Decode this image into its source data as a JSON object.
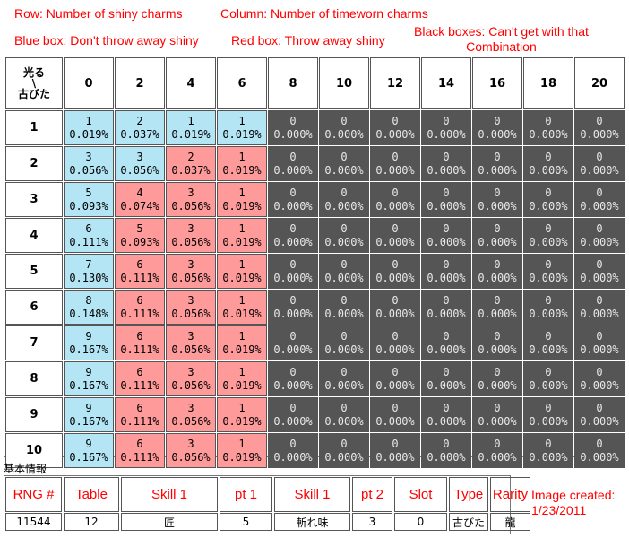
{
  "annotations": {
    "row": "Row: Number of shiny charms",
    "column": "Column: Number of timeworn charms",
    "blue": "Blue box: Don't throw away shiny",
    "red": "Red box: Throw away shiny",
    "black_line1": "Black boxes: Can't get with that",
    "black_line2": "Combination"
  },
  "table": {
    "corner": [
      "光る",
      "\\",
      "古びた"
    ],
    "columns": [
      "0",
      "2",
      "4",
      "6",
      "8",
      "10",
      "12",
      "14",
      "16",
      "18",
      "20"
    ],
    "rows": [
      {
        "label": "1",
        "cells": [
          [
            "1",
            "0.019%",
            "blue"
          ],
          [
            "2",
            "0.037%",
            "blue"
          ],
          [
            "1",
            "0.019%",
            "blue"
          ],
          [
            "1",
            "0.019%",
            "blue"
          ]
        ]
      },
      {
        "label": "2",
        "cells": [
          [
            "3",
            "0.056%",
            "blue"
          ],
          [
            "3",
            "0.056%",
            "blue"
          ],
          [
            "2",
            "0.037%",
            "red"
          ],
          [
            "1",
            "0.019%",
            "red"
          ]
        ]
      },
      {
        "label": "3",
        "cells": [
          [
            "5",
            "0.093%",
            "blue"
          ],
          [
            "4",
            "0.074%",
            "red"
          ],
          [
            "3",
            "0.056%",
            "red"
          ],
          [
            "1",
            "0.019%",
            "red"
          ]
        ]
      },
      {
        "label": "4",
        "cells": [
          [
            "6",
            "0.111%",
            "blue"
          ],
          [
            "5",
            "0.093%",
            "red"
          ],
          [
            "3",
            "0.056%",
            "red"
          ],
          [
            "1",
            "0.019%",
            "red"
          ]
        ]
      },
      {
        "label": "5",
        "cells": [
          [
            "7",
            "0.130%",
            "blue"
          ],
          [
            "6",
            "0.111%",
            "red"
          ],
          [
            "3",
            "0.056%",
            "red"
          ],
          [
            "1",
            "0.019%",
            "red"
          ]
        ]
      },
      {
        "label": "6",
        "cells": [
          [
            "8",
            "0.148%",
            "blue"
          ],
          [
            "6",
            "0.111%",
            "red"
          ],
          [
            "3",
            "0.056%",
            "red"
          ],
          [
            "1",
            "0.019%",
            "red"
          ]
        ]
      },
      {
        "label": "7",
        "cells": [
          [
            "9",
            "0.167%",
            "blue"
          ],
          [
            "6",
            "0.111%",
            "red"
          ],
          [
            "3",
            "0.056%",
            "red"
          ],
          [
            "1",
            "0.019%",
            "red"
          ]
        ]
      },
      {
        "label": "8",
        "cells": [
          [
            "9",
            "0.167%",
            "blue"
          ],
          [
            "6",
            "0.111%",
            "red"
          ],
          [
            "3",
            "0.056%",
            "red"
          ],
          [
            "1",
            "0.019%",
            "red"
          ]
        ]
      },
      {
        "label": "9",
        "cells": [
          [
            "9",
            "0.167%",
            "blue"
          ],
          [
            "6",
            "0.111%",
            "red"
          ],
          [
            "3",
            "0.056%",
            "red"
          ],
          [
            "1",
            "0.019%",
            "red"
          ]
        ]
      },
      {
        "label": "10",
        "cells": [
          [
            "9",
            "0.167%",
            "blue"
          ],
          [
            "6",
            "0.111%",
            "red"
          ],
          [
            "3",
            "0.056%",
            "red"
          ],
          [
            "1",
            "0.019%",
            "red"
          ]
        ]
      }
    ],
    "empty_cell": [
      "0",
      "0.000%"
    ]
  },
  "basic_info": {
    "title": "基本情報",
    "headers": [
      "RNG #",
      "Table",
      "Skill 1",
      "pt 1",
      "Skill 1",
      "pt 2",
      "Slot",
      "Type",
      "Rarity"
    ],
    "values": [
      "11544",
      "12",
      "匠",
      "5",
      "斬れ味",
      "3",
      "0",
      "古びた",
      "龍"
    ]
  },
  "created": {
    "line1": "Image created:",
    "line2": "1/23/2011"
  },
  "colors": {
    "blue": "#b3e5f5",
    "red": "#ff9a9a",
    "black": "#555555",
    "annotation": "#ff0000"
  }
}
